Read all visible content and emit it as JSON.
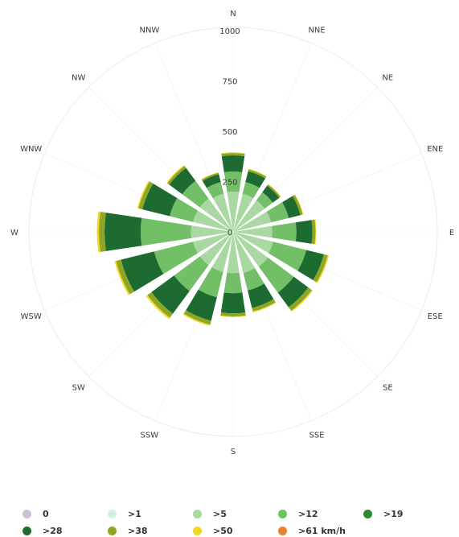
{
  "chart_data": {
    "type": "wind-rose",
    "directions": [
      "N",
      "NNE",
      "NE",
      "ENE",
      "E",
      "ESE",
      "SE",
      "SSE",
      "S",
      "SSW",
      "SW",
      "WSW",
      "W",
      "WNW",
      "NW",
      "NNW"
    ],
    "radial_ticks": [
      "0",
      "250",
      "500",
      "750",
      "1000"
    ],
    "rmax": 1000,
    "series": [
      {
        "name": "0",
        "color": "#c9c3d6",
        "values": [
          0,
          0,
          0,
          0,
          0,
          0,
          0,
          0,
          0,
          0,
          0,
          0,
          0,
          0,
          0,
          0
        ]
      },
      {
        "name": ">1",
        "color": "#d3ecec",
        "values": [
          5,
          5,
          5,
          5,
          5,
          5,
          5,
          5,
          5,
          5,
          5,
          5,
          5,
          5,
          5,
          5
        ]
      },
      {
        "name": ">5",
        "color": "#a9d8a2",
        "values": [
          195,
          190,
          190,
          190,
          190,
          200,
          210,
          205,
          200,
          200,
          200,
          200,
          205,
          200,
          200,
          190
        ]
      },
      {
        "name": ">12",
        "color": "#72bf68",
        "values": [
          100,
          60,
          50,
          90,
          120,
          170,
          160,
          90,
          100,
          130,
          160,
          200,
          250,
          120,
          110,
          60
        ]
      },
      {
        "name": ">19",
        "color": "#2a8c2e",
        "values": [
          0,
          0,
          0,
          0,
          0,
          0,
          0,
          0,
          0,
          0,
          0,
          0,
          0,
          0,
          0,
          0
        ]
      },
      {
        "name": ">28",
        "color": "#1d6b31",
        "values": [
          80,
          55,
          40,
          60,
          80,
          90,
          90,
          90,
          100,
          120,
          140,
          170,
          180,
          140,
          80,
          40
        ]
      },
      {
        "name": ">38",
        "color": "#8fa623",
        "values": [
          12,
          10,
          8,
          12,
          15,
          20,
          22,
          18,
          15,
          20,
          25,
          25,
          28,
          20,
          12,
          8
        ]
      },
      {
        "name": ">50",
        "color": "#f0d722",
        "values": [
          3,
          3,
          2,
          3,
          4,
          6,
          5,
          4,
          4,
          6,
          8,
          8,
          10,
          6,
          5,
          2
        ]
      },
      {
        "name": ">61 km/h",
        "color": "#e8852a",
        "values": [
          0,
          0,
          0,
          0,
          0,
          0,
          0,
          0,
          0,
          0,
          0,
          0,
          0,
          0,
          0,
          0
        ]
      }
    ]
  },
  "legend": [
    {
      "label": "0",
      "color": "#c9c3d6"
    },
    {
      "label": ">1",
      "color": "#d3ecec"
    },
    {
      "label": ">5",
      "color": "#a9d8a2"
    },
    {
      "label": ">12",
      "color": "#72bf68"
    },
    {
      "label": ">19",
      "color": "#2a8c2e"
    },
    {
      "label": ">28",
      "color": "#1d6b31"
    },
    {
      "label": ">38",
      "color": "#8fa623"
    },
    {
      "label": ">50",
      "color": "#f0d722"
    },
    {
      "label": ">61 km/h",
      "color": "#e8852a"
    }
  ]
}
